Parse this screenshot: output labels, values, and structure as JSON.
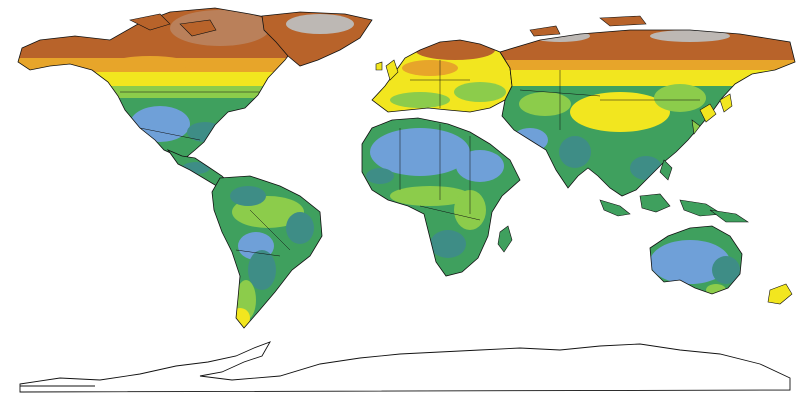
{
  "map": {
    "projection": "equirectangular",
    "background_color": "#ffffff",
    "border_color": "#111111",
    "palette": {
      "hot_blue": "#6fa0d8",
      "teal": "#3e8d86",
      "green": "#3fa05e",
      "light_green": "#8ccc4b",
      "yellow": "#f2e61f",
      "orange": "#e7a52a",
      "brown": "#b8632a",
      "ice_gray": "#bdb8b4"
    },
    "regions": [
      "north-america",
      "greenland",
      "south-america",
      "europe",
      "africa",
      "asia",
      "australia",
      "new-zealand",
      "antarctica"
    ]
  }
}
